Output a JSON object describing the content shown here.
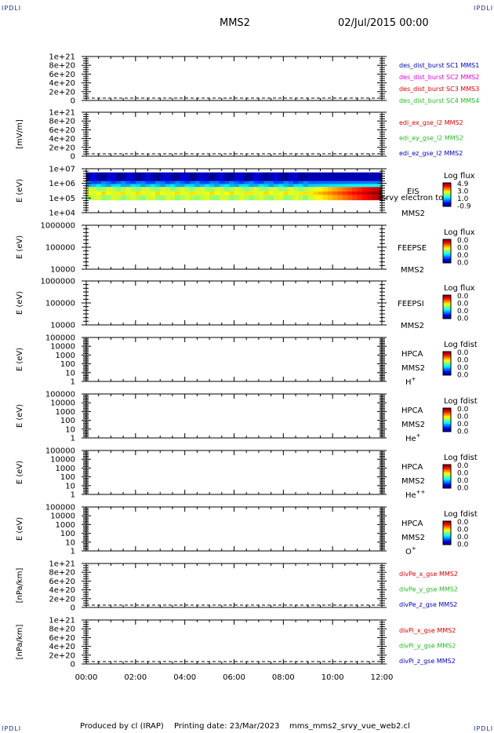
{
  "corner_label": "IPDLI",
  "header": {
    "title": "MMS2",
    "date": "02/Jul/2015 00:00"
  },
  "footer": {
    "produced": "Produced by cl (IRAP)",
    "printing": "Printing date: 23/Mar/2023",
    "script": "mms_mms2_srvy_vue_web2.cl"
  },
  "colors": {
    "red": "#dd0000",
    "green": "#22bb22",
    "blue": "#0000bb",
    "magenta": "#dd00dd",
    "dark_blue": "#000099"
  },
  "chart_data": {
    "type": "heatmap",
    "x_tick_labels": [
      "00:00",
      "02:00",
      "04:00",
      "06:00",
      "08:00",
      "10:00",
      "12:00"
    ],
    "xlim_hours": [
      0,
      12
    ],
    "panels": [
      {
        "kind": "line",
        "ylabel": "",
        "yticks": [
          "1e+21",
          "8e+20",
          "6e+20",
          "4e+20",
          "2e+20",
          "0"
        ],
        "zero_line": true,
        "legend": [
          {
            "text": "des_dist_burst SC1 MMS1",
            "color": "#0000bb"
          },
          {
            "text": "des_dist_burst SC2 MMS2",
            "color": "#dd00dd"
          },
          {
            "text": "des_dist_burst SC3 MMS3",
            "color": "#dd0000"
          },
          {
            "text": "des_dist_burst SC4 MMS4",
            "color": "#22bb22"
          }
        ]
      },
      {
        "kind": "line",
        "ylabel": "[mV/m]",
        "yticks": [
          "1e+21",
          "8e+20",
          "6e+20",
          "4e+20",
          "2e+20",
          "0"
        ],
        "zero_line": true,
        "legend": [
          {
            "text": "edi_ex_gse_l2 MMS2",
            "color": "#dd0000"
          },
          {
            "text": "edi_ey_gse_l2 MMS2",
            "color": "#22bb22"
          },
          {
            "text": "edi_ez_gse_l2 MMS2",
            "color": "#0000bb"
          }
        ]
      },
      {
        "kind": "spectrogram",
        "ylabel": "E (eV)",
        "yticks": [
          "1e+07",
          "1e+06",
          "1e+05",
          "1e+04"
        ],
        "instrument": [
          "EIS",
          "MMS2"
        ],
        "overlay_text": "(srvy electron to",
        "colorbar": {
          "title": "Log flux",
          "labels": [
            "4.9",
            "3.0",
            "1.0",
            "-0.9"
          ]
        },
        "bands": [
          {
            "energy_top_log": 6.75,
            "energy_bottom_log": 6.15,
            "level_start": 0.05,
            "level_end": 0.05
          },
          {
            "energy_top_log": 6.15,
            "energy_bottom_log": 5.95,
            "level_start": 0.22,
            "level_end": 0.25
          },
          {
            "energy_top_log": 5.95,
            "energy_bottom_log": 5.75,
            "level_start": 0.32,
            "level_end": 0.4
          },
          {
            "energy_top_log": 5.75,
            "energy_bottom_log": 5.45,
            "level_start": 0.55,
            "level_end": 0.95
          },
          {
            "energy_top_log": 5.45,
            "energy_bottom_log": 5.2,
            "level_start": 0.62,
            "level_end": 1.0
          },
          {
            "energy_top_log": 5.2,
            "energy_bottom_log": 4.85,
            "level_start": 0.55,
            "level_end": 0.95
          }
        ],
        "transition_hours": [
          8.8,
          11.8
        ]
      },
      {
        "kind": "spectrogram_empty",
        "ylabel": "E (eV)",
        "yticks": [
          "1000000",
          "100000",
          "10000"
        ],
        "instrument": [
          "FEEPSE",
          "MMS2"
        ],
        "colorbar": {
          "title": "Log flux",
          "labels": [
            "0.0",
            "0.0",
            "0.0",
            "0.0"
          ]
        }
      },
      {
        "kind": "spectrogram_empty",
        "ylabel": "E (eV)",
        "yticks": [
          "1000000",
          "100000",
          "10000"
        ],
        "instrument": [
          "FEEPSI",
          "MMS2"
        ],
        "colorbar": {
          "title": "Log flux",
          "labels": [
            "0.0",
            "0.0",
            "0.0",
            "0.0"
          ]
        }
      },
      {
        "kind": "spectrogram_empty",
        "ylabel": "E (eV)",
        "yticks": [
          "100000",
          "10000",
          "1000",
          "100",
          "10",
          "1"
        ],
        "instrument": [
          "HPCA",
          "MMS2",
          "H"
        ],
        "species_sup": "+",
        "colorbar": {
          "title": "Log fdist",
          "labels": [
            "0.0",
            "0.0",
            "0.0",
            "0.0"
          ]
        }
      },
      {
        "kind": "spectrogram_empty",
        "ylabel": "E (eV)",
        "yticks": [
          "100000",
          "10000",
          "1000",
          "100",
          "10",
          "1"
        ],
        "instrument": [
          "HPCA",
          "MMS2",
          "He"
        ],
        "species_sup": "+",
        "colorbar": {
          "title": "Log fdist",
          "labels": [
            "0.0",
            "0.0",
            "0.0",
            "0.0"
          ]
        }
      },
      {
        "kind": "spectrogram_empty",
        "ylabel": "E (eV)",
        "yticks": [
          "100000",
          "10000",
          "1000",
          "100",
          "10",
          "1"
        ],
        "instrument": [
          "HPCA",
          "MMS2",
          "He"
        ],
        "species_sup": "++",
        "colorbar": {
          "title": "Log fdist",
          "labels": [
            "0.0",
            "0.0",
            "0.0",
            "0.0"
          ]
        }
      },
      {
        "kind": "spectrogram_empty",
        "ylabel": "E (eV)",
        "yticks": [
          "100000",
          "10000",
          "1000",
          "100",
          "10",
          "1"
        ],
        "instrument": [
          "HPCA",
          "MMS2",
          "O"
        ],
        "species_sup": "+",
        "colorbar": {
          "title": "Log fdist",
          "labels": [
            "0.0",
            "0.0",
            "0.0",
            "0.0"
          ]
        }
      },
      {
        "kind": "line",
        "ylabel": "[nPa/km]",
        "yticks": [
          "1e+21",
          "8e+20",
          "6e+20",
          "4e+20",
          "2e+20",
          "0"
        ],
        "zero_line": true,
        "legend": [
          {
            "text": "divPe_x_gse MMS2",
            "color": "#dd0000"
          },
          {
            "text": "divPe_y_gse MMS2",
            "color": "#22bb22"
          },
          {
            "text": "divPe_z_gse MMS2",
            "color": "#0000bb"
          }
        ]
      },
      {
        "kind": "line",
        "ylabel": "[nPa/km]",
        "yticks": [
          "1e+21",
          "8e+20",
          "6e+20",
          "4e+20",
          "2e+20",
          "0"
        ],
        "zero_line": true,
        "legend": [
          {
            "text": "divPi_x_gse MMS2",
            "color": "#dd0000"
          },
          {
            "text": "divPi_y_gse MMS2",
            "color": "#22bb22"
          },
          {
            "text": "divPi_z_gse MMS2",
            "color": "#0000bb"
          }
        ]
      }
    ]
  }
}
